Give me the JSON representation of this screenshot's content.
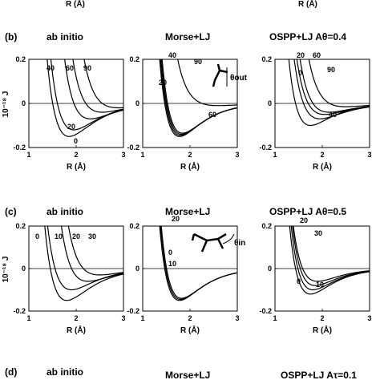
{
  "top_partial": {
    "labels": [
      "R (Å)",
      "R (Å)"
    ]
  },
  "rows": [
    {
      "row_label": "(b)",
      "y_axis_label": "10⁻¹⁸ J",
      "panels": [
        {
          "title": "ab initio"
        },
        {
          "title": "Morse+LJ",
          "inset_label": "θout"
        },
        {
          "title": "OSPP+LJ  Aθ=0.4"
        }
      ]
    },
    {
      "row_label": "(c)",
      "y_axis_label": "10⁻¹⁸ J",
      "panels": [
        {
          "title": "ab initio"
        },
        {
          "title": "Morse+LJ",
          "inset_label": "θin"
        },
        {
          "title": "OSPP+LJ  Aθ=0.5"
        }
      ]
    },
    {
      "row_label": "(d)",
      "panels": [
        {
          "title": "ab initio"
        },
        {
          "title": "Morse+LJ"
        },
        {
          "title": "OSPP+LJ Aτ=0.1"
        }
      ]
    }
  ],
  "chart_data": [
    {
      "id": "b1",
      "type": "line",
      "title": "ab initio",
      "xlabel": "R (Å)",
      "ylabel": "10⁻¹⁸ J",
      "xlim": [
        1,
        3
      ],
      "ylim": [
        -0.2,
        0.2
      ],
      "xticks": [
        "1",
        "2",
        "3"
      ],
      "yticks": [
        "0.2",
        "0",
        "-0.2"
      ],
      "series": [
        {
          "name": "0",
          "r0": 1.85,
          "depth": 0.15,
          "a": 2.0
        },
        {
          "name": "20",
          "r0": 1.95,
          "depth": 0.12,
          "a": 2.0
        },
        {
          "name": "40",
          "r0": 2.3,
          "depth": 0.07,
          "a": 2.0
        },
        {
          "name": "60",
          "r0": 2.55,
          "depth": 0.04,
          "a": 2.0
        },
        {
          "name": "90",
          "r0": 2.9,
          "depth": 0.02,
          "a": 2.0
        }
      ],
      "annotations": [
        "40",
        "60",
        "90",
        "20",
        "0"
      ]
    },
    {
      "id": "b2",
      "type": "line",
      "title": "Morse+LJ",
      "xlabel": "R (Å)",
      "xlim": [
        1,
        3
      ],
      "ylim": [
        -0.2,
        0.2
      ],
      "xticks": [
        "1",
        "2",
        "3"
      ],
      "yticks": [
        "0.2",
        "0",
        "-0.2"
      ],
      "series": [
        {
          "name": "0",
          "r0": 1.78,
          "depth": 0.15,
          "a": 2.2
        },
        {
          "name": "20",
          "r0": 1.8,
          "depth": 0.145,
          "a": 2.2
        },
        {
          "name": "40",
          "r0": 1.82,
          "depth": 0.14,
          "a": 2.2
        },
        {
          "name": "60",
          "r0": 1.84,
          "depth": 0.135,
          "a": 2.2
        },
        {
          "name": "90",
          "r0": 2.6,
          "depth": 0.01,
          "a": 2.0
        }
      ],
      "annotations": [
        "40",
        "0",
        "20",
        "90",
        "60"
      ]
    },
    {
      "id": "b3",
      "type": "line",
      "title": "OSPP+LJ  Aθ=0.4",
      "xlabel": "R (Å)",
      "xlim": [
        1,
        3
      ],
      "ylim": [
        -0.2,
        0.2
      ],
      "xticks": [
        "1",
        "2",
        "3"
      ],
      "yticks": [
        "0.2",
        "0",
        "-0.2"
      ],
      "series": [
        {
          "name": "0",
          "r0": 1.75,
          "depth": 0.1,
          "a": 2.2
        },
        {
          "name": "20",
          "r0": 1.95,
          "depth": 0.07,
          "a": 2.0
        },
        {
          "name": "40",
          "r0": 2.05,
          "depth": 0.05,
          "a": 2.0
        },
        {
          "name": "60",
          "r0": 2.15,
          "depth": 0.04,
          "a": 2.0
        },
        {
          "name": "90",
          "r0": 2.5,
          "depth": 0.015,
          "a": 2.0
        }
      ],
      "annotations": [
        "20",
        "60",
        "0",
        "90",
        "40"
      ]
    },
    {
      "id": "c1",
      "type": "line",
      "title": "ab initio",
      "xlabel": "R (Å)",
      "ylabel": "10⁻¹⁸ J",
      "xlim": [
        1,
        3
      ],
      "ylim": [
        -0.2,
        0.2
      ],
      "xticks": [
        "1",
        "2",
        "3"
      ],
      "yticks": [
        "0.2",
        "0",
        "-0.2"
      ],
      "series": [
        {
          "name": "0",
          "r0": 1.8,
          "depth": 0.15,
          "a": 2.0
        },
        {
          "name": "10",
          "r0": 1.9,
          "depth": 0.1,
          "a": 2.0
        },
        {
          "name": "20",
          "r0": 2.25,
          "depth": 0.06,
          "a": 2.0
        },
        {
          "name": "30",
          "r0": 2.5,
          "depth": 0.03,
          "a": 2.0
        }
      ],
      "annotations": [
        "0",
        "10",
        "20",
        "30"
      ]
    },
    {
      "id": "c2",
      "type": "line",
      "title": "Morse+LJ",
      "xlabel": "R (Å)",
      "xlim": [
        1,
        3
      ],
      "ylim": [
        -0.2,
        0.2
      ],
      "xticks": [
        "1",
        "2",
        "3"
      ],
      "yticks": [
        "0.2",
        "0",
        "-0.2"
      ],
      "series": [
        {
          "name": "0",
          "r0": 1.78,
          "depth": 0.15,
          "a": 2.2
        },
        {
          "name": "10",
          "r0": 1.8,
          "depth": 0.145,
          "a": 2.2
        },
        {
          "name": "20",
          "r0": 1.82,
          "depth": 0.14,
          "a": 2.2
        }
      ],
      "annotations": [
        "20",
        "0",
        "10"
      ]
    },
    {
      "id": "c3",
      "type": "line",
      "title": "OSPP+LJ  Aθ=0.5",
      "xlabel": "R (Å)",
      "xlim": [
        1,
        3
      ],
      "ylim": [
        -0.2,
        0.2
      ],
      "xticks": [
        "1",
        "2",
        "3"
      ],
      "yticks": [
        "0.2",
        "0",
        "-0.2"
      ],
      "series": [
        {
          "name": "0",
          "r0": 1.75,
          "depth": 0.12,
          "a": 2.2
        },
        {
          "name": "10",
          "r0": 1.8,
          "depth": 0.1,
          "a": 2.2
        },
        {
          "name": "20",
          "r0": 1.85,
          "depth": 0.08,
          "a": 2.2
        },
        {
          "name": "30",
          "r0": 1.9,
          "depth": 0.06,
          "a": 2.2
        }
      ],
      "annotations": [
        "20",
        "30",
        "0",
        "10"
      ]
    }
  ]
}
